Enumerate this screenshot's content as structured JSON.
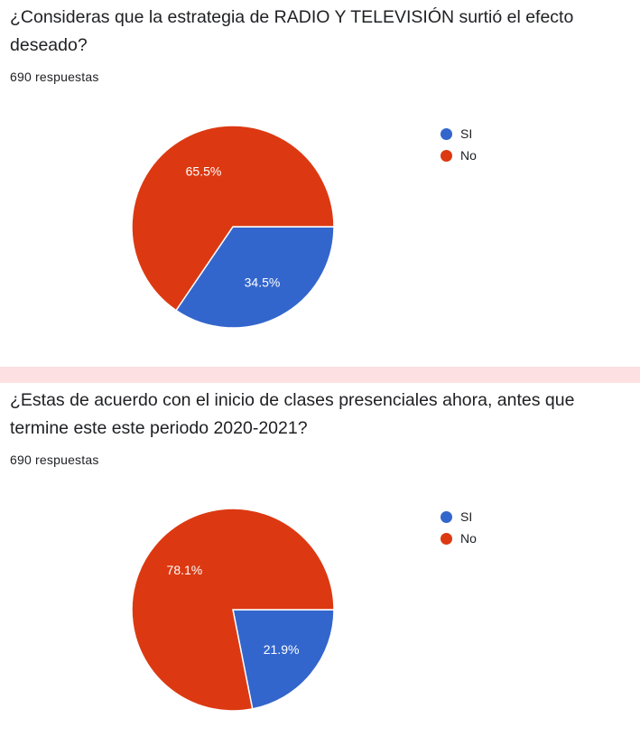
{
  "questions": [
    {
      "title": "¿Consideras que la estrategia de RADIO Y TELEVISIÓN surtió el efecto deseado?",
      "responses": "690 respuestas",
      "chart_data": {
        "type": "pie",
        "categories": [
          "SI",
          "No"
        ],
        "values": [
          34.5,
          65.5
        ],
        "labels": [
          "34.5%",
          "65.5%"
        ],
        "colors": [
          "#3366cc",
          "#dc3912"
        ],
        "legend": "right"
      }
    },
    {
      "title": "¿Estas de acuerdo con el inicio de clases presenciales ahora, antes que termine este este periodo 2020-2021?",
      "responses": "690 respuestas",
      "chart_data": {
        "type": "pie",
        "categories": [
          "SI",
          "No"
        ],
        "values": [
          21.9,
          78.1
        ],
        "labels": [
          "21.9%",
          "78.1%"
        ],
        "colors": [
          "#3366cc",
          "#dc3912"
        ],
        "legend": "right"
      }
    }
  ]
}
